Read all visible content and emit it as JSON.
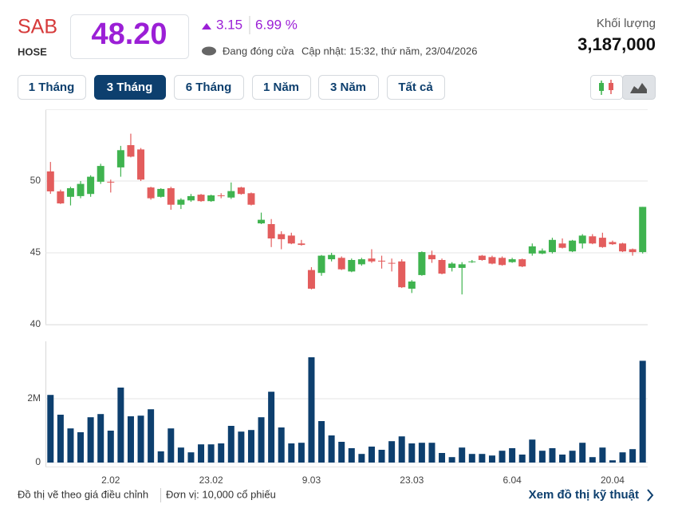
{
  "header": {
    "symbol": "SAB",
    "exchange": "HOSE",
    "price": "48.20",
    "change": "3.15",
    "change_pct": "6.99 %",
    "status": "Đang đóng cửa",
    "updated": "Cập nhật: 15:32, thứ năm, 23/04/2026",
    "volume_label": "Khối lượng",
    "volume": "3,187,000"
  },
  "ranges": [
    "1 Tháng",
    "3 Tháng",
    "6 Tháng",
    "1 Năm",
    "3 Năm",
    "Tất cả"
  ],
  "active_range": 1,
  "chart_data": [
    {
      "type": "candlestick",
      "up_color": "#3fb34f",
      "down_color": "#e35d5d",
      "grid": true,
      "categories": [
        null,
        null,
        null,
        null,
        null,
        null,
        "2.02",
        null,
        null,
        null,
        null,
        null,
        null,
        null,
        null,
        null,
        "23.02",
        null,
        null,
        null,
        null,
        null,
        null,
        null,
        null,
        null,
        "9.03",
        null,
        null,
        null,
        null,
        null,
        null,
        null,
        null,
        null,
        "23.03",
        null,
        null,
        null,
        null,
        null,
        null,
        null,
        null,
        null,
        "6.04",
        null,
        null,
        null,
        null,
        null,
        null,
        null,
        null,
        null,
        "20.04",
        null,
        null,
        null
      ],
      "open": [
        50.67,
        49.28,
        48.9,
        48.95,
        49.1,
        49.95,
        49.95,
        50.95,
        52.5,
        52.2,
        49.55,
        48.9,
        49.5,
        48.35,
        48.65,
        49.05,
        48.6,
        49.0,
        48.85,
        49.55,
        49.15,
        47.05,
        47.0,
        46.3,
        46.2,
        45.65,
        43.8,
        43.6,
        44.55,
        44.65,
        43.7,
        44.2,
        44.6,
        44.45,
        44.3,
        44.4,
        42.5,
        43.45,
        44.85,
        44.5,
        43.95,
        43.95,
        44.35,
        44.8,
        44.7,
        44.65,
        44.35,
        44.55,
        44.95,
        44.95,
        45.05,
        45.65,
        45.1,
        45.65,
        46.15,
        46.05,
        45.75,
        45.65,
        45.25,
        45.05
      ],
      "high": [
        51.33,
        49.4,
        49.6,
        50.0,
        50.4,
        51.2,
        50.1,
        52.45,
        53.3,
        52.3,
        49.6,
        49.5,
        49.6,
        48.8,
        49.1,
        49.1,
        49.05,
        49.15,
        49.9,
        49.6,
        49.2,
        47.8,
        47.35,
        46.5,
        46.4,
        45.9,
        44.0,
        44.85,
        45.0,
        44.75,
        44.6,
        44.65,
        45.25,
        44.8,
        44.6,
        44.55,
        43.1,
        45.1,
        45.15,
        44.6,
        44.35,
        44.35,
        44.5,
        44.85,
        44.8,
        44.75,
        44.65,
        44.6,
        45.65,
        45.3,
        46.05,
        46.0,
        45.9,
        46.3,
        46.3,
        46.4,
        45.85,
        45.7,
        45.3,
        48.2
      ],
      "low": [
        49.11,
        48.4,
        48.3,
        48.8,
        48.9,
        49.8,
        49.2,
        50.3,
        51.65,
        50.0,
        48.7,
        48.85,
        48.0,
        48.05,
        48.55,
        48.55,
        48.55,
        48.8,
        48.75,
        49.05,
        48.3,
        47.0,
        45.4,
        45.25,
        45.6,
        45.5,
        42.45,
        43.4,
        44.4,
        43.8,
        43.65,
        44.1,
        44.3,
        43.9,
        43.7,
        42.55,
        42.2,
        43.4,
        44.3,
        43.5,
        43.7,
        42.1,
        44.3,
        44.45,
        44.2,
        44.1,
        44.3,
        44.0,
        44.8,
        44.9,
        44.95,
        45.3,
        45.05,
        45.3,
        45.6,
        45.35,
        45.55,
        45.05,
        44.8,
        44.95
      ],
      "close": [
        49.28,
        48.44,
        49.5,
        49.8,
        50.3,
        51.05,
        49.9,
        52.15,
        51.7,
        50.1,
        48.8,
        49.45,
        48.35,
        48.7,
        48.95,
        48.6,
        49.0,
        48.95,
        49.3,
        49.1,
        48.35,
        47.3,
        46.0,
        45.95,
        45.65,
        45.55,
        42.5,
        44.8,
        44.85,
        43.85,
        44.5,
        44.55,
        44.4,
        44.4,
        44.25,
        42.6,
        43.0,
        45.05,
        44.55,
        43.55,
        44.25,
        44.2,
        44.4,
        44.5,
        44.25,
        44.15,
        44.55,
        44.05,
        45.45,
        45.15,
        45.9,
        45.35,
        45.85,
        46.2,
        45.65,
        45.4,
        45.6,
        45.1,
        45.05,
        48.2
      ],
      "ylim": [
        40,
        55
      ],
      "yticks": [
        40,
        45,
        50
      ]
    },
    {
      "type": "bar",
      "color": "#0d3f6e",
      "grid": true,
      "categories": [
        null,
        null,
        null,
        null,
        null,
        null,
        "2.02",
        null,
        null,
        null,
        null,
        null,
        null,
        null,
        null,
        null,
        "23.02",
        null,
        null,
        null,
        null,
        null,
        null,
        null,
        null,
        null,
        "9.03",
        null,
        null,
        null,
        null,
        null,
        null,
        null,
        null,
        null,
        "23.03",
        null,
        null,
        null,
        null,
        null,
        null,
        null,
        null,
        null,
        "6.04",
        null,
        null,
        null,
        null,
        null,
        null,
        null,
        null,
        null,
        "20.04",
        null,
        null,
        null
      ],
      "values": [
        2.12,
        1.5,
        1.07,
        0.95,
        1.42,
        1.52,
        1.0,
        2.35,
        1.45,
        1.47,
        1.67,
        0.35,
        1.07,
        0.47,
        0.32,
        0.57,
        0.57,
        0.6,
        1.15,
        0.97,
        1.02,
        1.42,
        2.22,
        1.1,
        0.6,
        0.62,
        3.3,
        1.3,
        0.85,
        0.65,
        0.45,
        0.27,
        0.5,
        0.4,
        0.67,
        0.82,
        0.6,
        0.62,
        0.62,
        0.3,
        0.17,
        0.47,
        0.27,
        0.27,
        0.22,
        0.37,
        0.45,
        0.25,
        0.72,
        0.37,
        0.45,
        0.25,
        0.37,
        0.62,
        0.17,
        0.47,
        0.07,
        0.32,
        0.42,
        3.19
      ],
      "ylim": [
        0,
        3.8
      ],
      "yticks": [
        0,
        {
          "value": 2,
          "label": "2M"
        }
      ]
    }
  ],
  "footer": {
    "note": "Đồ thị vẽ theo giá điều chỉnh",
    "unit": "Đơn vị: 10,000 cổ phiếu",
    "link": "Xem đồ thị kỹ thuật"
  }
}
